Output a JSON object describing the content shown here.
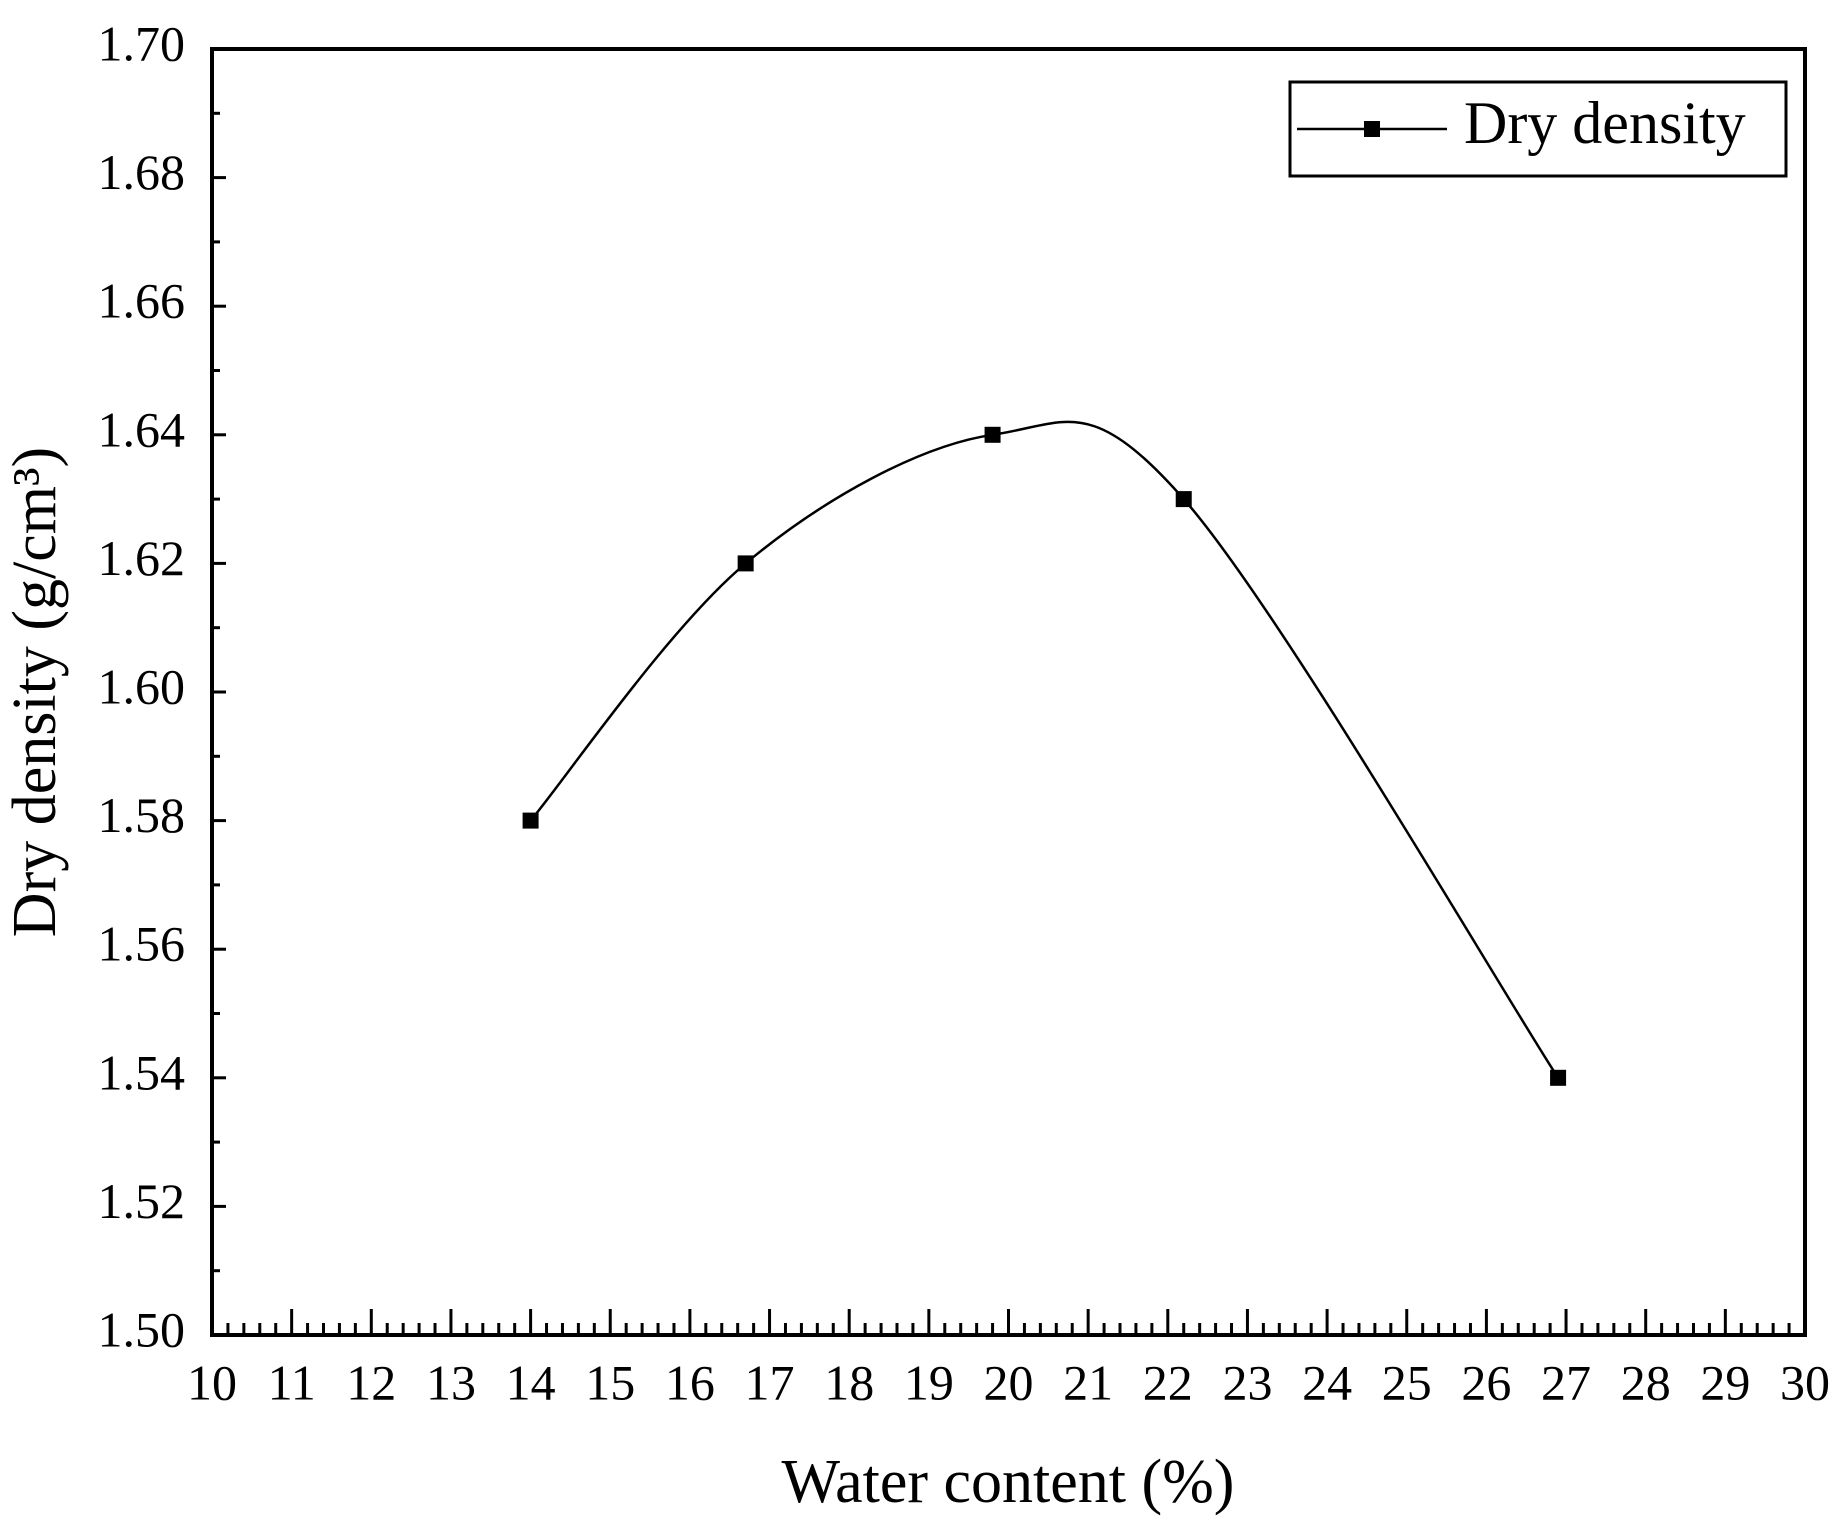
{
  "chart_data": {
    "type": "line",
    "x_label": "Water content (%)",
    "y_label": "Dry density (g/cm³)",
    "series": [
      {
        "name": "Dry density",
        "color": "#000000",
        "x": [
          14,
          16.7,
          19.8,
          22.2,
          26.9
        ],
        "values": [
          1.58,
          1.62,
          1.64,
          1.63,
          1.54
        ]
      }
    ],
    "xlim": [
      10,
      30
    ],
    "xticks": [
      10,
      11,
      12,
      13,
      14,
      15,
      16,
      17,
      18,
      19,
      20,
      21,
      22,
      23,
      24,
      25,
      26,
      27,
      28,
      29,
      30
    ],
    "ylim": [
      1.5,
      1.7
    ],
    "yticks": [
      {
        "value": 1.5,
        "label": "1.50"
      },
      1.52,
      1.54,
      1.56,
      1.58,
      {
        "value": 1.6,
        "label": "1.60"
      },
      1.62,
      1.64,
      1.66,
      1.68,
      {
        "value": 1.7,
        "label": "1.70"
      }
    ],
    "legend": "upper right",
    "smooth": true,
    "grid": false
  }
}
